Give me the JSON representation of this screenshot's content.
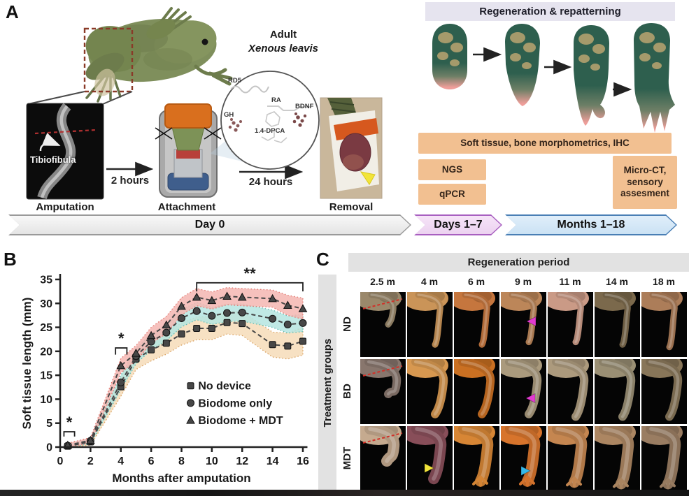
{
  "panel_a": {
    "label": "A",
    "species_line1": "Adult",
    "species_line2": "Xenous leavis",
    "xray_label": "Tibiofibula",
    "step1": "Amputation",
    "step2": "Attachment",
    "step3": "Removal",
    "arrow1_label": "2  hours",
    "arrow2_label": "24 hours",
    "molecules": [
      "RD5",
      "RA",
      "GH",
      "1.4-DPCA",
      "BDNF"
    ],
    "regen_header": "Regeneration & repatterning",
    "assay_wide": "Soft tissue, bone morphometrics, IHC",
    "assay_ngs": "NGS",
    "assay_qpcr": "qPCR",
    "assay_microct": "Micro-CT, sensory assesment",
    "timeline": {
      "day0": "Day 0",
      "days17": "Days 1–7",
      "months118": "Months 1–18"
    }
  },
  "panel_b": {
    "label": "B"
  },
  "chart_data": {
    "type": "line",
    "title": "",
    "xlabel": "Months after amputation",
    "ylabel": "Soft tissue length (mm)",
    "xlim": [
      0,
      16.6
    ],
    "ylim": [
      0,
      35
    ],
    "xticks": [
      0,
      2,
      4,
      6,
      8,
      10,
      12,
      14,
      16
    ],
    "yticks": [
      0,
      5,
      10,
      15,
      20,
      25,
      30,
      35
    ],
    "grid": false,
    "legend_position": "lower right",
    "x": [
      0.5,
      2,
      4,
      5,
      6,
      7,
      8,
      9,
      10,
      11,
      12,
      14,
      15,
      16
    ],
    "series": [
      {
        "name": "No device",
        "marker": "square",
        "color": "#474747",
        "line_style": "dashed",
        "band_color": "#f6dcb8",
        "band_stroke": "#d9a05f",
        "values": [
          0.2,
          1.1,
          12.6,
          18.4,
          20.3,
          21.7,
          23.6,
          24.8,
          24.8,
          26.0,
          25.8,
          21.4,
          21.1,
          22.1
        ],
        "band": [
          0.5,
          0.7,
          2.0,
          2.2,
          2.3,
          2.3,
          2.3,
          2.4,
          2.4,
          2.4,
          2.5,
          2.6,
          2.7,
          2.9
        ]
      },
      {
        "name": "Biodome only",
        "marker": "circle",
        "color": "#474747",
        "line_style": "dashed",
        "band_color": "#b5e5e0",
        "band_stroke": "#5fbdb5",
        "values": [
          0.3,
          1.3,
          13.5,
          19.0,
          22.0,
          23.9,
          26.9,
          28.4,
          27.4,
          28.0,
          28.1,
          26.8,
          25.6,
          25.9
        ],
        "band": [
          0.4,
          0.6,
          1.5,
          1.6,
          1.7,
          1.7,
          1.8,
          1.8,
          1.8,
          1.8,
          1.8,
          1.8,
          1.8,
          1.8
        ]
      },
      {
        "name": "Biodome + MDT",
        "marker": "triangle",
        "color": "#474747",
        "line_style": "dashed",
        "band_color": "#f4b6b1",
        "band_stroke": "#e0776f",
        "values": [
          0.4,
          1.4,
          17.0,
          19.6,
          23.3,
          25.5,
          29.4,
          31.3,
          30.6,
          31.5,
          31.3,
          31.0,
          29.6,
          28.9
        ],
        "band": [
          0.4,
          0.6,
          1.5,
          1.6,
          1.7,
          1.8,
          1.8,
          1.8,
          1.8,
          1.8,
          1.8,
          1.8,
          2.1,
          2.2
        ]
      }
    ],
    "annotations": [
      {
        "label": "*",
        "x1": 0.25,
        "x2": 0.95,
        "y": 3.2,
        "drop": 1.0
      },
      {
        "label": "*",
        "x1": 3.65,
        "x2": 4.4,
        "y": 20.7,
        "drop": 1.4
      },
      {
        "label": "**",
        "x1": 9.0,
        "x2": 16.0,
        "y": 34.3,
        "drop": 1.8
      }
    ],
    "legend": [
      "No device",
      "Biodome only",
      "Biodome + MDT"
    ]
  },
  "panel_c": {
    "label": "C",
    "header": "Regeneration period",
    "col_headers": [
      "2.5 m",
      "4 m",
      "6 m",
      "9 m",
      "11 m",
      "14 m",
      "18 m"
    ],
    "group_axis": "Treatment groups",
    "rows": [
      {
        "label": "ND",
        "cells": [
          {
            "t": "#8a7a60",
            "len": 0.45,
            "dash": true
          },
          {
            "t": "#b5854f",
            "len": 0.85
          },
          {
            "t": "#b06a38",
            "len": 0.85
          },
          {
            "t": "#a87850",
            "len": 0.8,
            "a": {
              "c": "#e23bd0",
              "d": "left",
              "x": 45,
              "y": 42
            }
          },
          {
            "t": "#b58a78",
            "len": 0.8
          },
          {
            "t": "#6e5e44",
            "len": 0.85
          },
          {
            "t": "#9a7050",
            "len": 0.9
          }
        ]
      },
      {
        "label": "BD",
        "cells": [
          {
            "t": "#7a6a62",
            "len": 0.5,
            "dash": true
          },
          {
            "t": "#c08848",
            "len": 0.9
          },
          {
            "t": "#b5641f",
            "len": 0.9
          },
          {
            "t": "#988a70",
            "len": 0.9,
            "a": {
              "c": "#e23bd0",
              "d": "left",
              "x": 44,
              "y": 56
            }
          },
          {
            "t": "#9a8a70",
            "len": 0.95
          },
          {
            "t": "#8a8068",
            "len": 0.95
          },
          {
            "t": "#7a6a50",
            "len": 0.95
          }
        ]
      },
      {
        "label": "MDT",
        "cells": [
          {
            "t": "#b09880",
            "len": 0.5,
            "dash": true
          },
          {
            "t": "#7a4650",
            "len": 0.85,
            "a": {
              "c": "#f2e43a",
              "d": "right",
              "x": 30,
              "y": 60
            }
          },
          {
            "t": "#c07830",
            "len": 0.9,
            "foot": true
          },
          {
            "t": "#c06828",
            "len": 0.9,
            "foot": true,
            "a": {
              "c": "#35b8e8",
              "d": "right",
              "x": 34,
              "y": 64
            }
          },
          {
            "t": "#b07848",
            "len": 0.92,
            "foot": true
          },
          {
            "t": "#9a7858",
            "len": 0.95,
            "foot": true
          },
          {
            "t": "#8a7058",
            "len": 0.95,
            "foot": true
          }
        ]
      }
    ]
  }
}
